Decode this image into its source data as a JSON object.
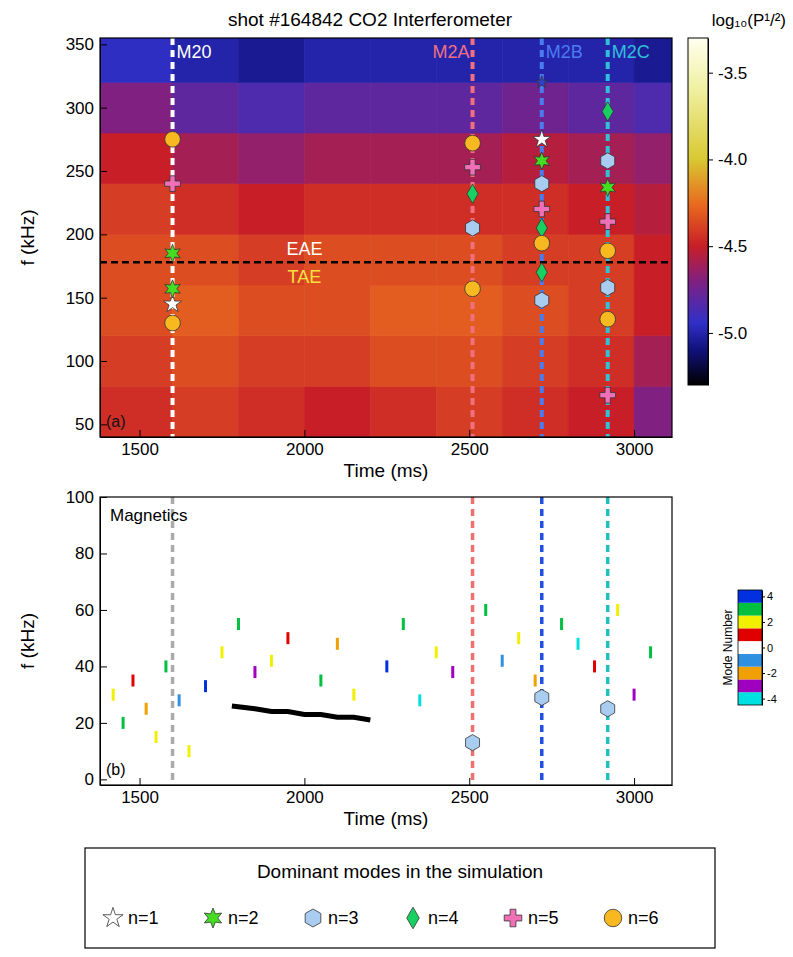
{
  "chart_data": [
    {
      "type": "heatmap",
      "title": "shot #164842  CO2 Interferometer",
      "x_label": "Time (ms)",
      "y_label": "f (kHz)",
      "panel": "(a)",
      "xlim": [
        1380,
        3115
      ],
      "ylim": [
        40,
        355
      ],
      "xticks": [
        1500,
        2000,
        2500,
        3000
      ],
      "yticks": [
        50,
        100,
        150,
        200,
        250,
        300,
        350
      ],
      "heatmap": {
        "x": [
          1380,
          1600,
          1800,
          2000,
          2200,
          2400,
          2600,
          2800,
          3000,
          3115
        ],
        "y": [
          40,
          80,
          120,
          160,
          200,
          240,
          280,
          320,
          355
        ],
        "values": [
          [
            -4.45,
            -4.4,
            -4.45,
            -4.5,
            -4.45,
            -4.4,
            -4.45,
            -4.5,
            -4.7
          ],
          [
            -4.4,
            -4.35,
            -4.4,
            -4.4,
            -4.35,
            -4.35,
            -4.4,
            -4.45,
            -4.6
          ],
          [
            -4.35,
            -4.3,
            -4.35,
            -4.35,
            -4.3,
            -4.3,
            -4.35,
            -4.4,
            -4.5
          ],
          [
            -4.35,
            -4.35,
            -4.4,
            -4.35,
            -4.35,
            -4.35,
            -4.4,
            -4.4,
            -4.5
          ],
          [
            -4.4,
            -4.45,
            -4.5,
            -4.45,
            -4.45,
            -4.45,
            -4.45,
            -4.5,
            -4.55
          ],
          [
            -4.5,
            -4.6,
            -4.65,
            -4.6,
            -4.6,
            -4.6,
            -4.55,
            -4.6,
            -4.65
          ],
          [
            -4.7,
            -4.8,
            -4.85,
            -4.8,
            -4.8,
            -4.8,
            -4.75,
            -4.8,
            -4.85
          ],
          [
            -4.95,
            -5.0,
            -5.05,
            -5.0,
            -5.0,
            -5.0,
            -5.0,
            -5.0,
            -5.05
          ]
        ]
      },
      "colorbar": {
        "title": "log₁₀(P¹/²)",
        "range": [
          -5.3,
          -3.3
        ],
        "ticks": [
          -3.5,
          {
            "value": -4.0,
            "label": "-4.0"
          },
          -4.5,
          {
            "value": -5.0,
            "label": "-5.0"
          }
        ]
      },
      "vlines": [
        {
          "label": "M20",
          "x": 1600,
          "color": "#ffffff"
        },
        {
          "label": "M2A",
          "x": 2510,
          "color": "#f07080"
        },
        {
          "label": "M2B",
          "x": 2720,
          "color": "#4a7cf0"
        },
        {
          "label": "M2C",
          "x": 2920,
          "color": "#30c0d8"
        }
      ],
      "hline": {
        "y": 178,
        "labels": [
          "EAE",
          "TAE"
        ],
        "colors": [
          "#ffffff",
          "#f8e040"
        ]
      },
      "legend": "bottom",
      "legend_title": "Dominant modes in the simulation",
      "series": [
        {
          "name": "n=1",
          "type": "scatter",
          "marker": "star",
          "color": "#ffffff",
          "x": [
            1600,
            2720,
            2720
          ],
          "values": [
            145,
            275,
            320
          ],
          "colors": [
            "#ffffff",
            "#ffffff",
            "#3040d0"
          ]
        },
        {
          "name": "n=2",
          "type": "scatter",
          "marker": "star6",
          "color": "#44dd22",
          "x": [
            1600,
            1600,
            2720,
            2920
          ],
          "values": [
            185,
            157,
            258,
            237
          ]
        },
        {
          "name": "n=3",
          "type": "scatter",
          "marker": "hexagon",
          "color": "#a8cdf0",
          "x": [
            2510,
            2720,
            2720,
            2920,
            2920
          ],
          "values": [
            205,
            240,
            148,
            258,
            158
          ]
        },
        {
          "name": "n=4",
          "type": "scatter",
          "marker": "diamond",
          "color": "#18d060",
          "x": [
            2510,
            2720,
            2720,
            2920
          ],
          "values": [
            232,
            205,
            170,
            297
          ]
        },
        {
          "name": "n=5",
          "type": "scatter",
          "marker": "cross",
          "color": "#f070b8",
          "x": [
            1600,
            2510,
            2720,
            2920,
            2920
          ],
          "values": [
            240,
            253,
            220,
            210,
            73
          ]
        },
        {
          "name": "n=6",
          "type": "scatter",
          "marker": "circle",
          "color": "#f8b820",
          "x": [
            1600,
            1600,
            2510,
            2510,
            2720,
            2920,
            2920
          ],
          "values": [
            275,
            130,
            272,
            157,
            193,
            187,
            133
          ]
        }
      ]
    },
    {
      "type": "scatter",
      "title": "Magnetics",
      "x_label": "Time (ms)",
      "y_label": "f (kHz)",
      "panel": "(b)",
      "xlim": [
        1380,
        3115
      ],
      "ylim": [
        -2,
        100
      ],
      "xticks": [
        1500,
        2000,
        2500,
        3000
      ],
      "yticks": [
        0,
        20,
        40,
        60,
        80,
        100
      ],
      "modes": {
        "x": [
          1420,
          1450,
          1480,
          1520,
          1550,
          1580,
          1620,
          1650,
          1700,
          1750,
          1800,
          1850,
          1900,
          1950,
          2050,
          2100,
          2150,
          2250,
          2300,
          2350,
          2400,
          2450,
          2550,
          2600,
          2650,
          2700,
          2780,
          2830,
          2880,
          2950,
          3000,
          3050
        ],
        "values": [
          30,
          20,
          35,
          25,
          15,
          40,
          28,
          10,
          33,
          45,
          55,
          38,
          42,
          50,
          35,
          48,
          30,
          40,
          55,
          28,
          45,
          38,
          60,
          42,
          50,
          35,
          55,
          48,
          40,
          60,
          30,
          45
        ],
        "mode": [
          2,
          3,
          1,
          -2,
          2,
          3,
          -1,
          2,
          4,
          2,
          3,
          -3,
          2,
          1,
          3,
          -2,
          2,
          4,
          3,
          -4,
          2,
          -3,
          3,
          -1,
          2,
          -2,
          3,
          -4,
          1,
          2,
          -3,
          3
        ]
      },
      "colorbar": {
        "title": "Mode Number",
        "range": [
          -4.5,
          4.5
        ],
        "values": [
          -4,
          -3,
          -2,
          -1,
          0,
          1,
          2,
          3,
          4
        ],
        "colors": [
          "#00e0e0",
          "#a000c0",
          "#f0a000",
          "#3090e0",
          "#ffffff",
          "#e00000",
          "#f0f000",
          "#00c040",
          "#0030e0"
        ],
        "ticks": [
          -4,
          -2,
          0,
          2,
          4
        ]
      },
      "vlines": [
        {
          "x": 1600,
          "color": "#aaaaaa"
        },
        {
          "x": 2510,
          "color": "#f07070"
        },
        {
          "x": 2720,
          "color": "#2050e0"
        },
        {
          "x": 2920,
          "color": "#20c0c0"
        }
      ],
      "series": [
        {
          "type": "line",
          "color": "#000000",
          "x": [
            1780,
            1850,
            1900,
            1950,
            2000,
            2050,
            2100,
            2150,
            2200
          ],
          "values": [
            26,
            25,
            24,
            24,
            23,
            23,
            22,
            22,
            21
          ]
        },
        {
          "type": "scatter",
          "marker": "hexagon",
          "color": "#a8cdf0",
          "x": [
            2510,
            2720,
            2920
          ],
          "values": [
            13,
            29,
            25
          ]
        }
      ]
    }
  ]
}
